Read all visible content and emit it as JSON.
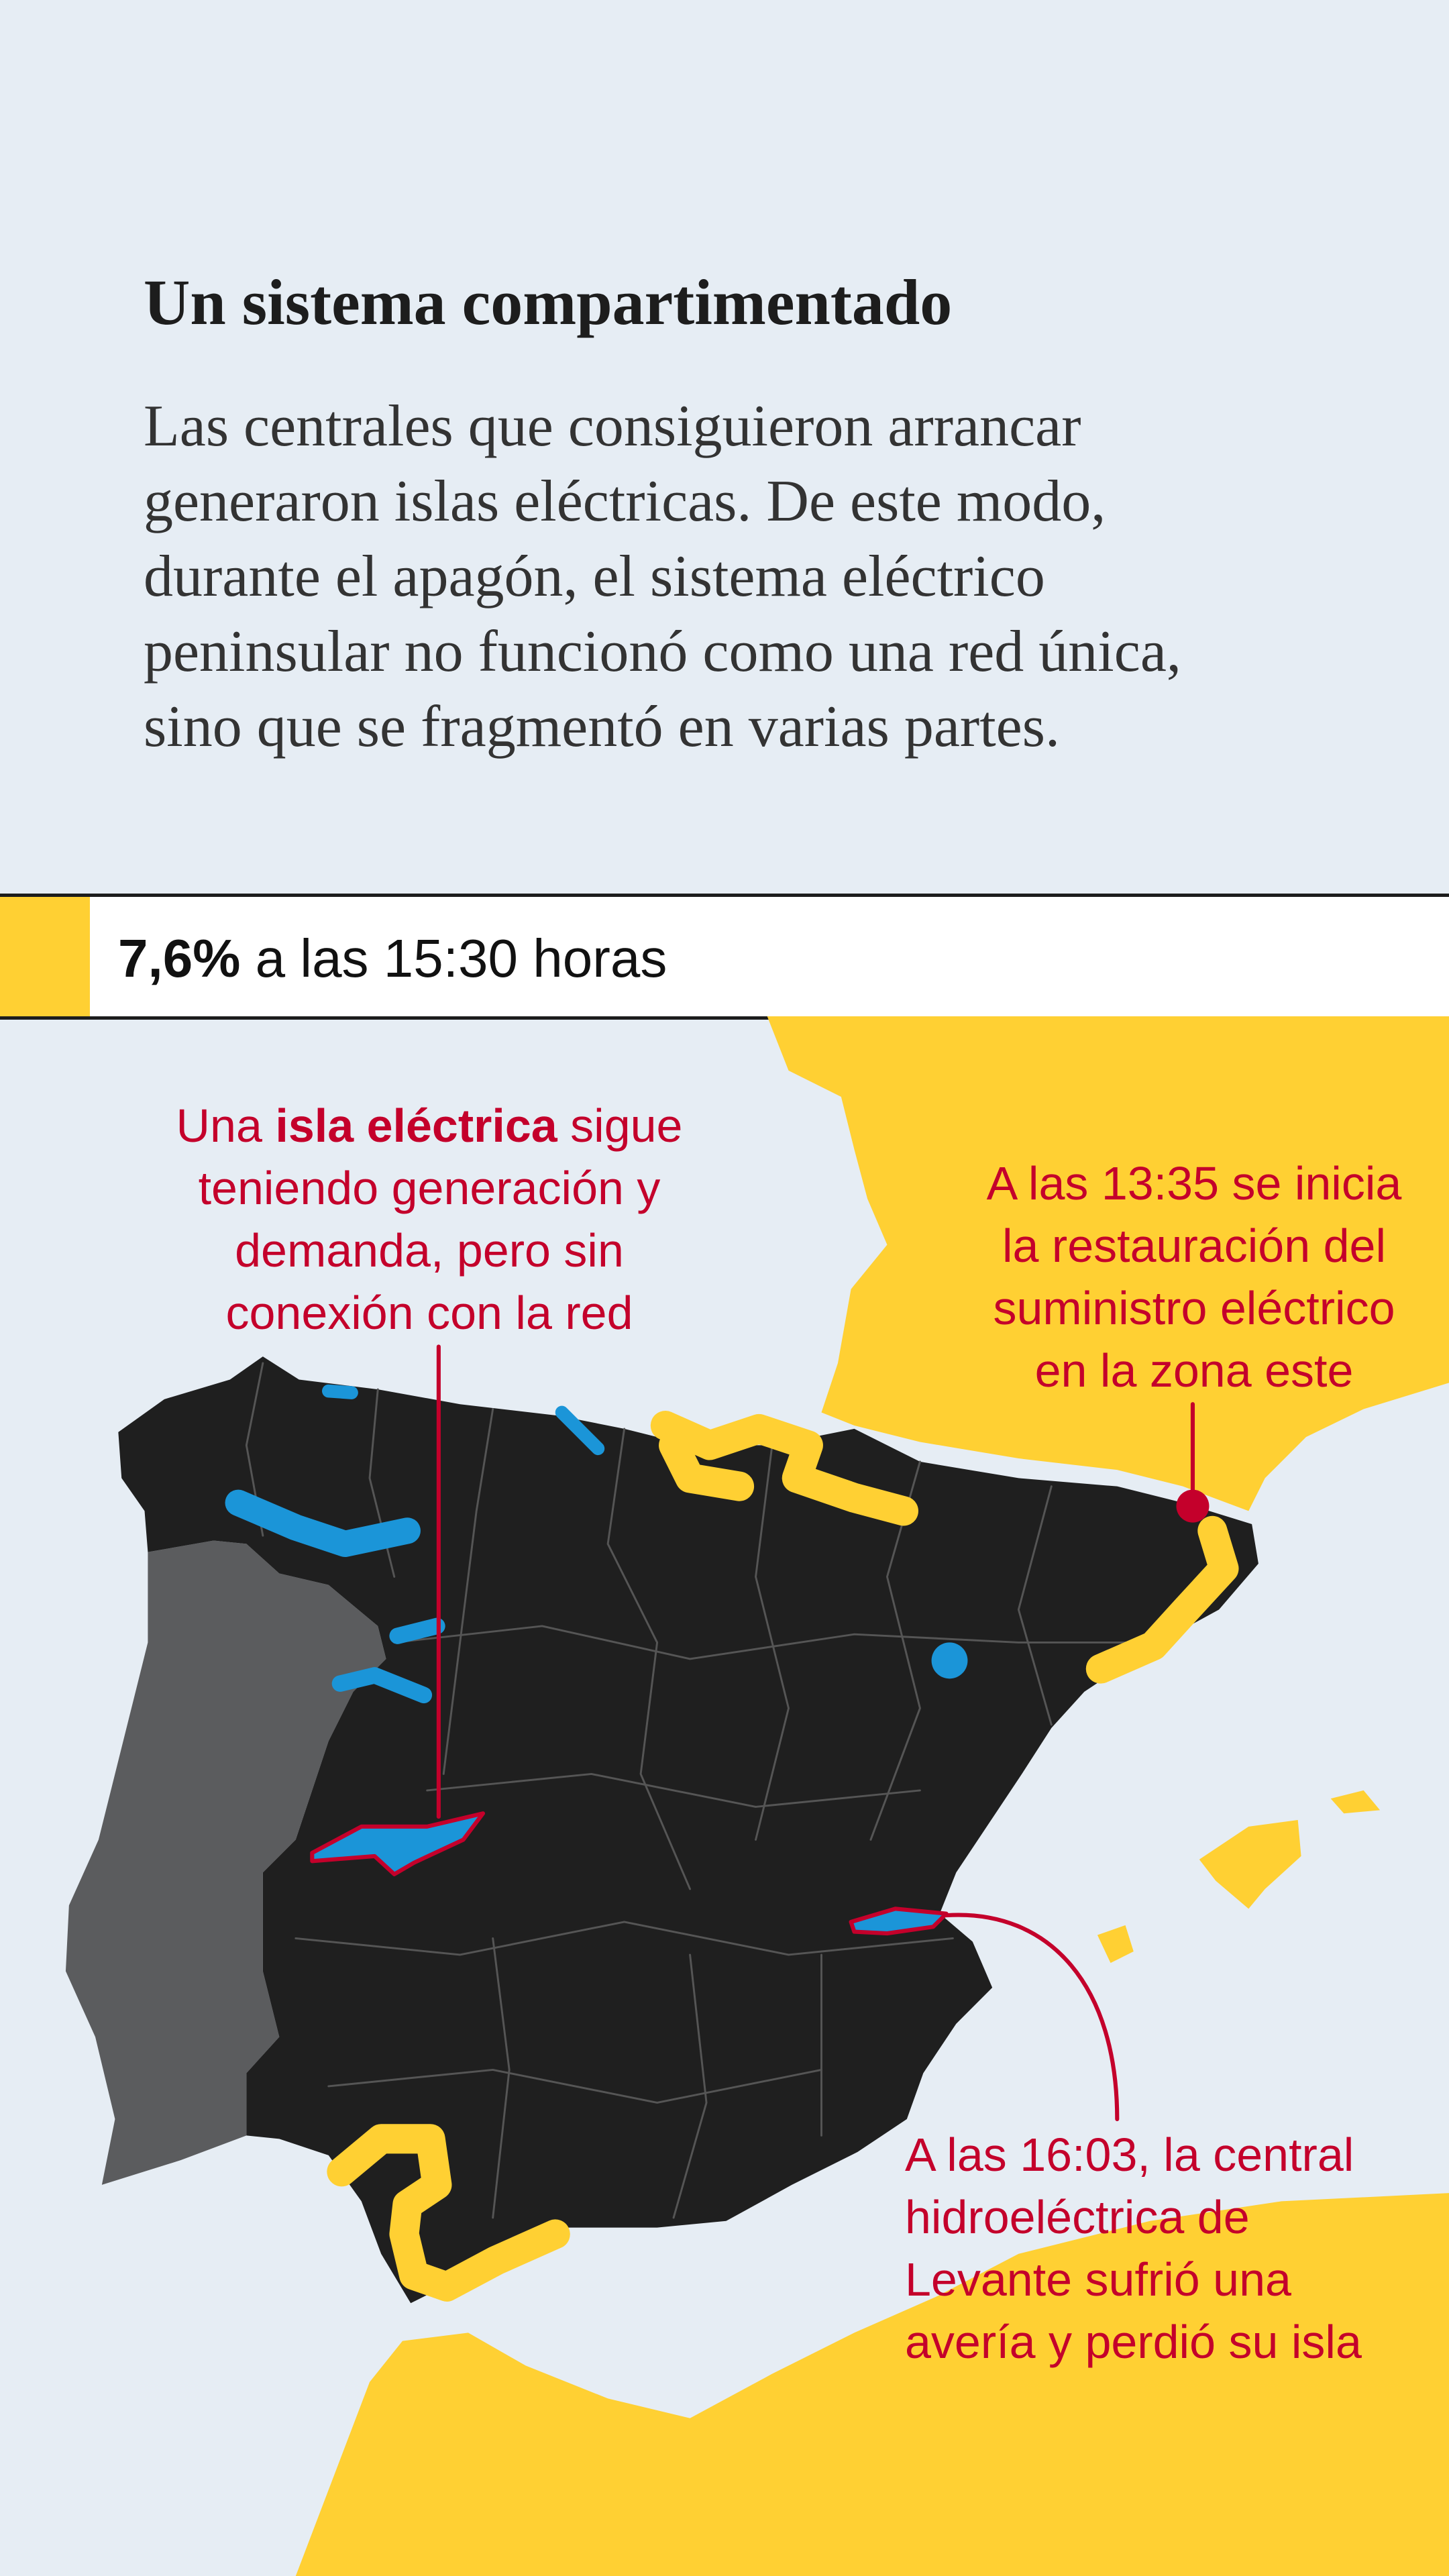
{
  "header": {
    "title": "Un sistema compartimentado",
    "body_lines": [
      "Las centrales que consiguieron arrancar",
      "generaron islas eléctricas. De este modo,",
      "durante el apagón, el sistema eléctrico",
      "peninsular no funcionó como una red única,",
      "sino que se fragmentó en varias partes."
    ]
  },
  "status_band": {
    "percent": "7,6%",
    "rest": " a las 15:30 horas"
  },
  "annotations": {
    "island_definition": {
      "prefix": "Una ",
      "bold": "isla eléctrica",
      "suffix": " sigue",
      "lines": [
        "teniendo generación y",
        "demanda, pero sin",
        "conexión con la red"
      ]
    },
    "east_restoration": {
      "lines": [
        "A las 13:35 se inicia",
        "la restauración del",
        "suministro eléctrico",
        "en la zona este"
      ]
    },
    "levante_failure": {
      "lines": [
        "A las 16:03, la central",
        "hidroeléctrica de",
        "Levante sufrió una",
        "avería y perdió su isla"
      ]
    }
  },
  "colors": {
    "background": "#e6edf4",
    "spain": "#1f1f1f",
    "portugal": "#5b5c5e",
    "powered": "#ffd033",
    "island": "#1b95d8",
    "accent_red": "#c4002b"
  }
}
